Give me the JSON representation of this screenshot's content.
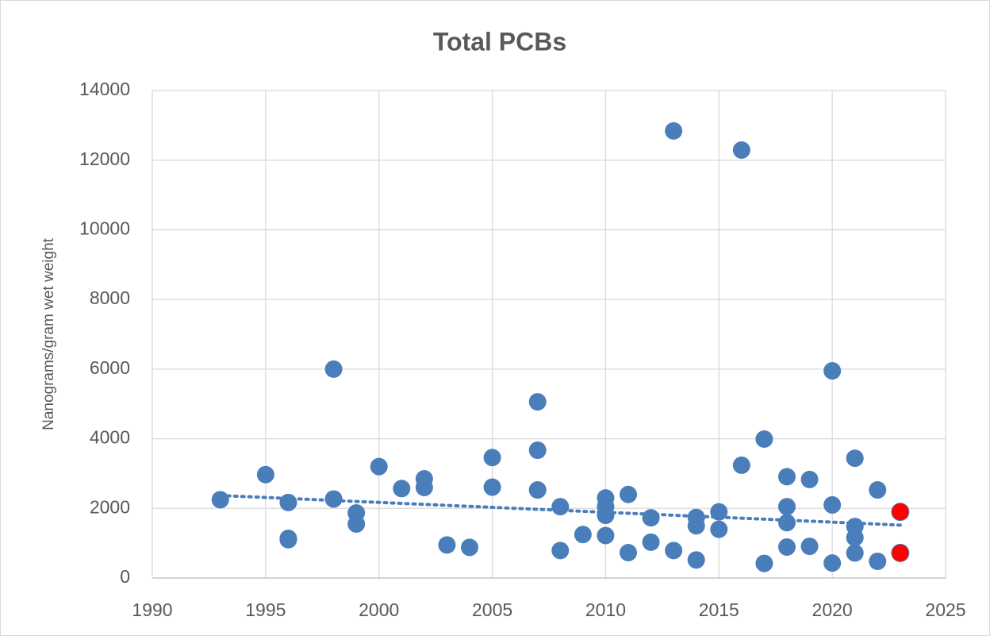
{
  "chart_data": {
    "type": "scatter",
    "title": "Total PCBs",
    "y_label": "Nanograms/gram wet weight",
    "xlim": [
      1990,
      2025
    ],
    "xticks": [
      1990,
      1995,
      2000,
      2005,
      2010,
      2015,
      2020,
      2025
    ],
    "ylim": [
      0,
      14000
    ],
    "yticks": [
      0,
      2000,
      4000,
      6000,
      8000,
      10000,
      12000,
      14000
    ],
    "grid": true,
    "series": [
      {
        "color": "#4a7ebb",
        "x": [
          1993,
          1995,
          1996,
          1996,
          1996,
          1998,
          1998,
          1999,
          1999,
          2000,
          2001,
          2002,
          2002,
          2003,
          2004,
          2005,
          2005,
          2007,
          2007,
          2007,
          2008,
          2008,
          2009,
          2010,
          2010,
          2010,
          2010,
          2011,
          2011,
          2012,
          2012,
          2013,
          2013,
          2014,
          2014,
          2014,
          2015,
          2015,
          2016,
          2016,
          2017,
          2017,
          2018,
          2018,
          2018,
          2018,
          2019,
          2019,
          2020,
          2020,
          2020,
          2021,
          2021,
          2021,
          2021,
          2022,
          2022
        ],
        "values": [
          2250,
          2970,
          2170,
          1140,
          1100,
          6000,
          2270,
          1870,
          1550,
          3200,
          2570,
          2850,
          2600,
          950,
          880,
          3460,
          2610,
          5060,
          3670,
          2530,
          2050,
          790,
          1250,
          2300,
          2050,
          1800,
          1220,
          2400,
          730,
          1730,
          1030,
          12840,
          790,
          1740,
          1500,
          520,
          1900,
          1400,
          12290,
          3240,
          3990,
          420,
          2910,
          2050,
          1590,
          890,
          2830,
          910,
          5950,
          2100,
          430,
          3440,
          1480,
          1160,
          720,
          2530,
          480
        ]
      },
      {
        "color": "#ff0000",
        "x": [
          2023,
          2023
        ],
        "values": [
          1900,
          720
        ]
      }
    ],
    "trendline": {
      "x": [
        1993,
        2023
      ],
      "values": [
        2370,
        1520
      ],
      "color": "#4a7ebb",
      "style": "dotted"
    }
  }
}
